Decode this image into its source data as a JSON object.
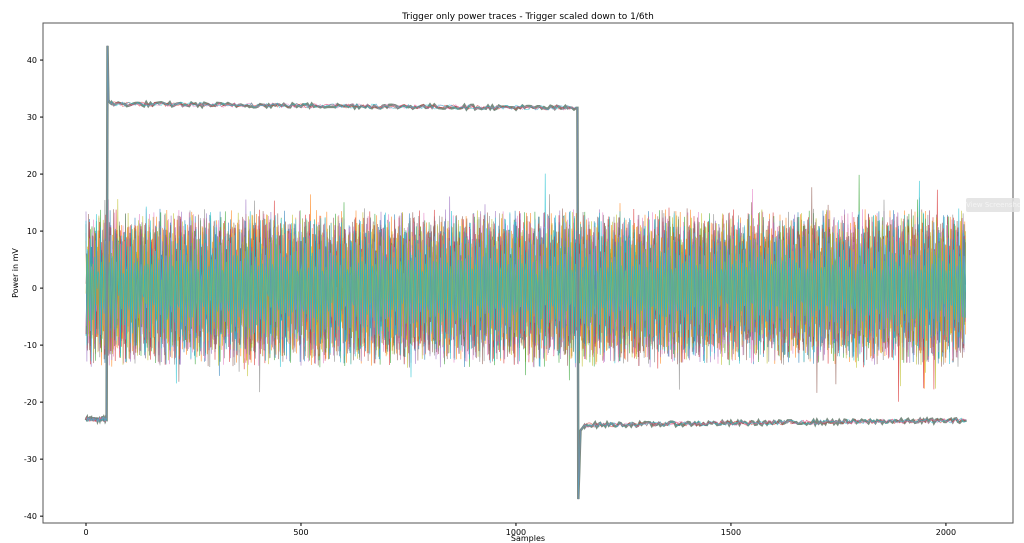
{
  "chart_data": {
    "type": "line",
    "title": "Trigger only power traces - Trigger scaled down to 1/6th",
    "xlabel": "Samples",
    "ylabel": "Power in mV",
    "xlim": [
      -100,
      2156
    ],
    "ylim": [
      -41.2,
      46.5
    ],
    "xticks": [
      0,
      500,
      1000,
      1500,
      2000
    ],
    "yticks": [
      -40,
      -30,
      -20,
      -10,
      0,
      10,
      20,
      30,
      40
    ],
    "grid": false,
    "legend": "none",
    "num_samples": 2048,
    "colors": [
      "#1f77b4",
      "#ff7f0e",
      "#2ca02c",
      "#d62728",
      "#9467bd",
      "#8c564b",
      "#e377c2",
      "#7f7f7f",
      "#bcbd22",
      "#17becf"
    ],
    "trigger_color": "#7a8c80",
    "trigger_trace": {
      "x": [
        0,
        48,
        50,
        52,
        56,
        60,
        1140,
        1143,
        1145,
        1150,
        1160,
        2048
      ],
      "y": [
        -23,
        -23,
        42.5,
        33,
        32.5,
        32.3,
        31.6,
        31.6,
        -37,
        -25,
        -24,
        -23.2
      ]
    },
    "power_traces": {
      "center": 0,
      "typical_amplitude": 14,
      "peak_max": 24,
      "peak_min": -22
    }
  },
  "overlay": {
    "view_button": "View Screenshot"
  }
}
